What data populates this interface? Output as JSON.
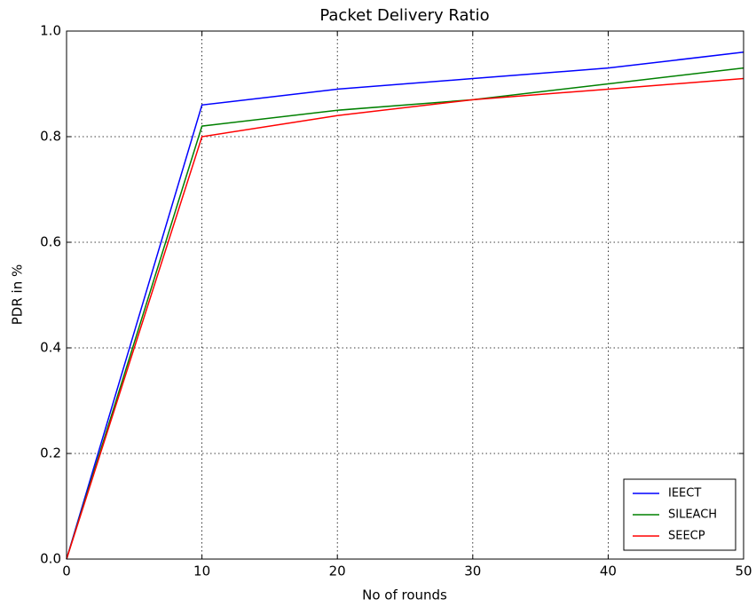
{
  "chart_data": {
    "type": "line",
    "title": "Packet Delivery Ratio",
    "xlabel": "No of rounds",
    "ylabel": "PDR in %",
    "x": [
      0,
      10,
      20,
      30,
      40,
      50
    ],
    "series": [
      {
        "name": "IEECT",
        "color": "#0000ff",
        "values": [
          0,
          0.86,
          0.89,
          0.91,
          0.93,
          0.96
        ]
      },
      {
        "name": "SILEACH",
        "color": "#008000",
        "values": [
          0,
          0.82,
          0.85,
          0.87,
          0.9,
          0.93
        ]
      },
      {
        "name": "SEECP",
        "color": "#ff0000",
        "values": [
          0,
          0.8,
          0.84,
          0.87,
          0.89,
          0.91
        ]
      }
    ],
    "xlim": [
      0,
      50
    ],
    "xticks": [
      0,
      10,
      20,
      30,
      40,
      50
    ],
    "ylim": [
      0,
      1
    ],
    "yticks": [
      {
        "value": 0,
        "label": "0.0"
      },
      0.2,
      0.4,
      0.6,
      0.8,
      {
        "value": 1,
        "label": "1.0"
      }
    ],
    "grid": true,
    "legend": "lower right"
  }
}
